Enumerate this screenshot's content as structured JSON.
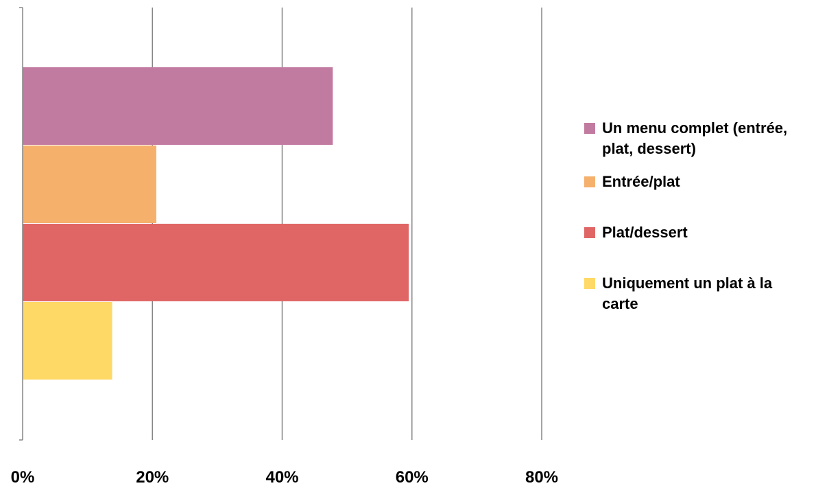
{
  "chart_data": {
    "type": "bar",
    "orientation": "horizontal",
    "categories": [
      "Un menu complet (entrée, plat, dessert)",
      "Entrée/plat",
      "Plat/dessert",
      "Uniquement un plat à la carte"
    ],
    "series": [
      {
        "name": "Un menu complet (entrée, plat, dessert)",
        "value": 47.8,
        "color": "#C27BA0"
      },
      {
        "name": "Entrée/plat",
        "value": 20.6,
        "color": "#F5B06C"
      },
      {
        "name": "Plat/dessert",
        "value": 59.5,
        "color": "#E06666"
      },
      {
        "name": "Uniquement un plat à la carte",
        "value": 13.8,
        "color": "#FFD966"
      }
    ],
    "xlim": [
      0,
      80
    ],
    "x_ticks": [
      "0%",
      "20%",
      "40%",
      "60%",
      "80%"
    ],
    "grid": "vertical",
    "legend_position": "right"
  }
}
